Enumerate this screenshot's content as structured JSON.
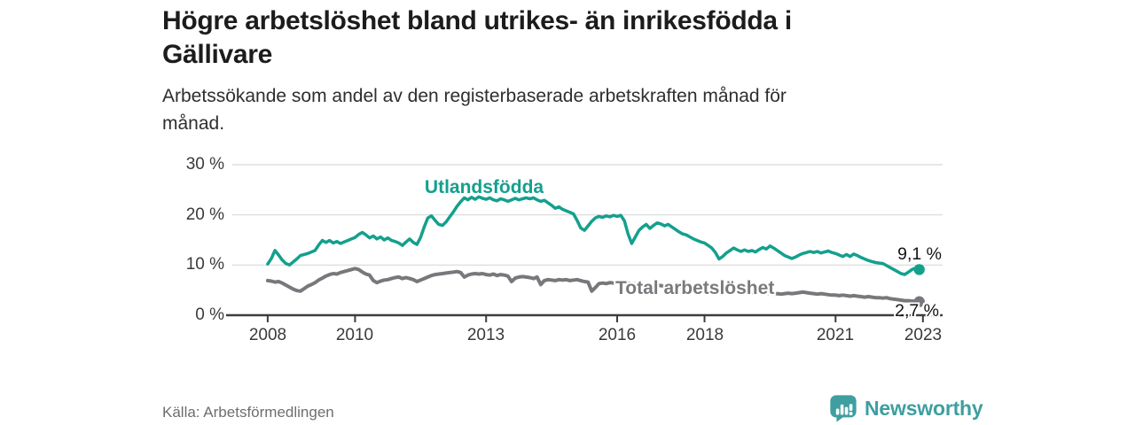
{
  "header": {
    "title_lines": [
      "Högre arbetslöshet bland utrikes- än inrikesfödda i",
      "Gällivare"
    ],
    "subtitle_lines": [
      "Arbetssökande som andel av den registerbaserade arbetskraften månad för",
      "månad."
    ]
  },
  "source": {
    "label": "Källa: Arbetsförmedlingen"
  },
  "branding": {
    "name": "Newsworthy",
    "icon": "newsworthy-speech-bubble-bar-chart-icon",
    "color": "#3e9ea0"
  },
  "colors": {
    "background": "#ffffff",
    "title_text": "#1c1c1c",
    "axis": "#3d3d3d",
    "gridline": "#d8d8d8",
    "tick_text": "#3a3a3a",
    "series_utlandsfodda": "#14a08d",
    "series_total": "#77787b",
    "value_text": "#141414",
    "source_text": "#6e6e6e"
  },
  "chart_data": {
    "type": "line",
    "title": "Högre arbetslöshet bland utrikes- än inrikesfödda i Gällivare",
    "subtitle": "Arbetssökande som andel av den registerbaserade arbetskraften månad för månad.",
    "unit": "%",
    "xlabel": "",
    "ylabel": "",
    "ylim": [
      0,
      30
    ],
    "grid": true,
    "x_start_year": 2008,
    "x_interval_months": 1,
    "y_ticks": [
      0,
      10,
      20,
      30
    ],
    "y_tick_labels": [
      "30 %",
      "20 %",
      "10 %",
      "0 %"
    ],
    "x_ticks": [
      2008,
      2010,
      2013,
      2016,
      2018,
      2021,
      2023
    ],
    "x_tick_labels": [
      "2008",
      "2010",
      "2013",
      "2016",
      "2018",
      "2021",
      "2023"
    ],
    "legend_position": "inline-labels",
    "series": [
      {
        "name": "Utlandsfödda",
        "color": "#14a08d",
        "line_width": 3.5,
        "end_label": "9,1 %",
        "end_value": 9.1,
        "values": [
          10.2,
          11.3,
          12.9,
          12.0,
          11.0,
          10.3,
          10.0,
          10.6,
          11.2,
          11.9,
          12.1,
          12.3,
          12.6,
          12.9,
          14.0,
          14.9,
          14.5,
          14.9,
          14.4,
          14.7,
          14.3,
          14.6,
          14.9,
          15.2,
          15.5,
          16.1,
          16.5,
          16.0,
          15.4,
          15.8,
          15.2,
          15.6,
          15.0,
          15.4,
          14.9,
          14.7,
          14.4,
          13.9,
          14.6,
          15.2,
          14.5,
          14.1,
          15.5,
          17.6,
          19.4,
          19.8,
          18.9,
          18.1,
          17.9,
          18.6,
          19.6,
          20.6,
          21.7,
          22.6,
          23.4,
          23.0,
          23.5,
          23.1,
          23.6,
          23.3,
          23.1,
          23.4,
          23.0,
          22.8,
          23.2,
          23.0,
          22.7,
          23.0,
          23.3,
          23.0,
          23.2,
          23.4,
          23.2,
          23.4,
          23.0,
          22.7,
          22.9,
          22.4,
          21.9,
          21.3,
          21.6,
          21.1,
          20.8,
          20.5,
          20.2,
          18.9,
          17.4,
          16.9,
          17.8,
          18.7,
          19.4,
          19.7,
          19.5,
          19.8,
          19.6,
          19.9,
          19.7,
          19.9,
          18.8,
          16.2,
          14.3,
          15.6,
          16.9,
          17.6,
          18.1,
          17.3,
          17.9,
          18.4,
          18.2,
          17.8,
          18.1,
          17.6,
          17.1,
          16.6,
          16.2,
          16.0,
          15.6,
          15.2,
          14.9,
          14.6,
          14.4,
          13.9,
          13.4,
          12.5,
          11.2,
          11.7,
          12.4,
          12.9,
          13.4,
          13.0,
          12.7,
          13.0,
          12.7,
          12.9,
          12.6,
          13.1,
          13.5,
          13.2,
          13.8,
          13.4,
          12.9,
          12.4,
          11.9,
          11.6,
          11.3,
          11.6,
          12.0,
          12.3,
          12.5,
          12.7,
          12.5,
          12.7,
          12.4,
          12.6,
          12.8,
          12.5,
          12.3,
          12.0,
          11.7,
          12.1,
          11.7,
          12.2,
          11.9,
          11.5,
          11.2,
          10.9,
          10.7,
          10.5,
          10.4,
          10.3,
          9.9,
          9.5,
          9.1,
          8.7,
          8.3,
          8.1,
          8.6,
          9.1,
          9.4,
          9.1
        ]
      },
      {
        "name": "Total arbetslöshet",
        "color": "#77787b",
        "line_width": 4,
        "end_label": "2,7 %",
        "end_value": 2.7,
        "values": [
          6.9,
          6.8,
          6.6,
          6.7,
          6.4,
          6.0,
          5.6,
          5.2,
          4.9,
          4.8,
          5.3,
          5.8,
          6.1,
          6.5,
          7.0,
          7.4,
          7.8,
          8.1,
          8.3,
          8.2,
          8.5,
          8.7,
          8.9,
          9.1,
          9.3,
          9.1,
          8.6,
          8.2,
          8.0,
          6.9,
          6.5,
          6.8,
          7.0,
          7.1,
          7.3,
          7.5,
          7.6,
          7.3,
          7.5,
          7.3,
          7.1,
          6.7,
          7.0,
          7.3,
          7.6,
          7.9,
          8.1,
          8.2,
          8.3,
          8.4,
          8.5,
          8.6,
          8.7,
          8.5,
          7.6,
          8.0,
          8.2,
          8.3,
          8.2,
          8.3,
          8.1,
          8.0,
          8.2,
          7.9,
          8.1,
          8.0,
          7.8,
          6.7,
          7.4,
          7.6,
          7.7,
          7.6,
          7.5,
          7.3,
          7.6,
          6.1,
          6.9,
          7.1,
          7.0,
          6.9,
          7.1,
          7.0,
          7.1,
          6.9,
          7.0,
          7.1,
          6.9,
          6.7,
          6.6,
          4.8,
          5.5,
          6.3,
          6.4,
          6.3,
          6.5,
          6.4,
          6.4,
          6.5,
          6.3,
          6.4,
          6.2,
          6.3,
          6.1,
          6.2,
          6.0,
          6.1,
          5.9,
          6.0,
          5.9,
          5.8,
          5.9,
          5.7,
          5.6,
          5.7,
          5.5,
          5.4,
          5.5,
          5.3,
          5.2,
          5.3,
          5.2,
          5.1,
          5.2,
          5.0,
          4.9,
          5.0,
          4.8,
          4.7,
          4.8,
          4.6,
          4.5,
          4.6,
          4.5,
          4.4,
          4.5,
          4.4,
          4.3,
          4.4,
          4.3,
          4.2,
          4.3,
          4.2,
          4.3,
          4.4,
          4.3,
          4.4,
          4.5,
          4.6,
          4.5,
          4.4,
          4.3,
          4.2,
          4.3,
          4.2,
          4.1,
          4.0,
          4.0,
          3.9,
          4.0,
          3.9,
          3.8,
          3.9,
          3.8,
          3.7,
          3.6,
          3.7,
          3.6,
          3.5,
          3.5,
          3.4,
          3.5,
          3.3,
          3.2,
          3.1,
          3.0,
          2.9,
          2.9,
          2.8,
          2.8,
          2.7
        ]
      }
    ]
  }
}
